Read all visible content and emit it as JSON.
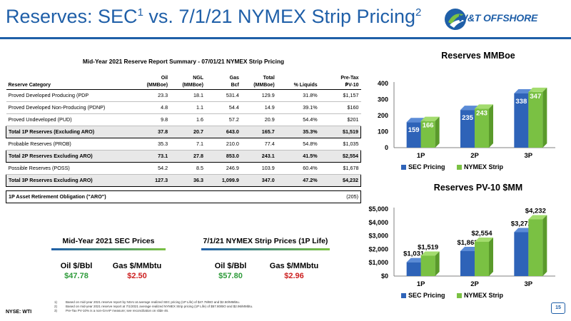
{
  "header": {
    "title_a": "Reserves: SEC",
    "title_sup1": "1",
    "title_b": " vs. 7/1/21 NYMEX Strip Pricing",
    "title_sup2": "2",
    "logo_text": "W&T OFFSHORE",
    "logo_icon": "swirl-logo-icon"
  },
  "table": {
    "title": "Mid-Year 2021 Reserve Report Summary - 07/01/21 NYMEX Strip Pricing",
    "footnote_ref": "3",
    "headers_top": [
      "",
      "Oil",
      "NGL",
      "Gas",
      "Total",
      "",
      "Pre-Tax"
    ],
    "headers_bottom": [
      "Reserve Category",
      "(MMBoe)",
      "(MMBoe)",
      "Bcf",
      "(MMBoe)",
      "% Liquids",
      "PV-10"
    ],
    "rows": [
      {
        "cells": [
          "Proved Developed Producing (PDP",
          "23.3",
          "18.1",
          "531.4",
          "129.9",
          "31.8%",
          "$1,157"
        ]
      },
      {
        "cells": [
          "Proved Developed Non-Producing (PDNP)",
          "4.8",
          "1.1",
          "54.4",
          "14.9",
          "39.1%",
          "$160"
        ]
      },
      {
        "cells": [
          "Proved Undeveloped (PUD)",
          "9.8",
          "1.6",
          "57.2",
          "20.9",
          "54.4%",
          "$201"
        ]
      },
      {
        "cells": [
          "Total 1P Reserves (Excluding ARO)",
          "37.8",
          "20.7",
          "643.0",
          "165.7",
          "35.3%",
          "$1,519"
        ]
      },
      {
        "cells": [
          "Probable Reserves (PROB)",
          "35.3",
          "7.1",
          "210.0",
          "77.4",
          "54.8%",
          "$1,035"
        ]
      },
      {
        "cells": [
          "Total 2P Reserves Excluding ARO)",
          "73.1",
          "27.8",
          "853.0",
          "243.1",
          "41.5%",
          "$2,554"
        ]
      },
      {
        "cells": [
          "Possible Reserves (POSS)",
          "54.2",
          "8.5",
          "246.9",
          "103.9",
          "60.4%",
          "$1,678"
        ]
      },
      {
        "cells": [
          "Total 3P Reserves Excluding ARO)",
          "127.3",
          "36.3",
          "1,099.9",
          "347.0",
          "47.2%",
          "$4,232"
        ]
      }
    ],
    "aro": {
      "label": "1P Asset Retirement Obligation (\"ARO\")",
      "value": "(205)"
    }
  },
  "sec_prices": {
    "title": "Mid-Year 2021 SEC Prices",
    "oil_label": "Oil $/Bbl",
    "oil_value": "$47.78",
    "gas_label": "Gas $/MMbtu",
    "gas_value": "$2.50"
  },
  "nymex_prices": {
    "title": "7/1/21 NYMEX Strip Prices (1P Life)",
    "oil_label": "Oil $/Bbl",
    "oil_value": "$57.80",
    "gas_label": "Gas $/MMbtu",
    "gas_value": "$2.96"
  },
  "footer": {
    "ticker": "NYSE:  WTI",
    "page": "15",
    "footnotes": [
      {
        "n": "1)",
        "text": "Based on mid-year 2021 reserve report by NSAI at average realized SEC pricing (1P Life) of $47.78/BO and $2.50/MMbtu."
      },
      {
        "n": "2)",
        "text": "Based on mid-year 2021 reserve report at 7/1/2021 average realized NYMEX Strip pricing (1P Life) of $57.80/BO and $2.96/MMbtu."
      },
      {
        "n": "3)",
        "text": "Pre-Tax PV-10% is a non-GAAP measure; see reconciliation on slide 46."
      }
    ]
  },
  "colors": {
    "sec": "#2e63b8",
    "nymex": "#7ac143",
    "title_blue": "#1f5fa8"
  },
  "chart_data": [
    {
      "type": "bar",
      "title": "Reserves MMBoe",
      "categories": [
        "1P",
        "2P",
        "3P"
      ],
      "series": [
        {
          "name": "SEC Pricing",
          "values": [
            159,
            235,
            338
          ],
          "labels": [
            "159",
            "235",
            "338"
          ]
        },
        {
          "name": "NYMEX Strip",
          "values": [
            166,
            243,
            347
          ],
          "labels": [
            "166",
            "243",
            "347"
          ]
        }
      ],
      "yticks": [
        "0",
        "100",
        "200",
        "300",
        "400"
      ],
      "ytick_values": [
        0,
        100,
        200,
        300,
        400
      ],
      "ylim": [
        0,
        400
      ],
      "legend": "bottom",
      "grid": false
    },
    {
      "type": "bar",
      "title": "Reserves PV-10 $MM",
      "categories": [
        "1P",
        "2P",
        "3P"
      ],
      "series": [
        {
          "name": "SEC Pricing",
          "values": [
            1031,
            1863,
            3272
          ],
          "labels": [
            "$1,031",
            "$1,863",
            "$3,272"
          ]
        },
        {
          "name": "NYMEX Strip",
          "values": [
            1519,
            2554,
            4232
          ],
          "labels": [
            "$1,519",
            "$2,554",
            "$4,232"
          ]
        }
      ],
      "yticks": [
        "$0",
        "$1,000",
        "$2,000",
        "$3,000",
        "$4,000",
        "$5,000"
      ],
      "ytick_values": [
        0,
        1000,
        2000,
        3000,
        4000,
        5000
      ],
      "ylim": [
        0,
        5000
      ],
      "legend": "bottom",
      "grid": false
    }
  ]
}
